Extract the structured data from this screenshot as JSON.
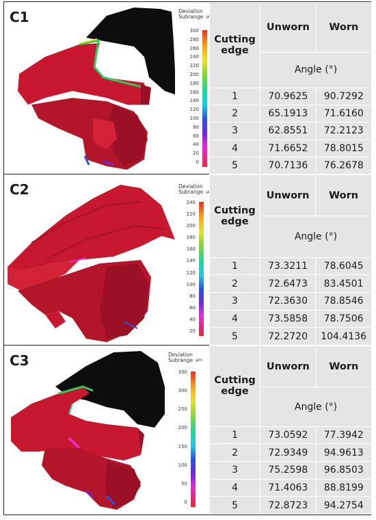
{
  "colorbar_title": "Deviation Subrange",
  "colorbar_unit": "µm",
  "table_headers": {
    "cutting_edge": "Cutting edge",
    "unworn": "Unworn",
    "worn": "Worn",
    "angle": "Angle (°)"
  },
  "panels": [
    {
      "label": "C1",
      "ticks": [
        "300",
        "280",
        "260",
        "240",
        "220",
        "200",
        "180",
        "160",
        "140",
        "120",
        "100",
        "80",
        "60",
        "40",
        "20",
        "0"
      ],
      "rows": [
        {
          "edge": "1",
          "unworn": "70.9625",
          "worn": "90.7292"
        },
        {
          "edge": "2",
          "unworn": "65.1913",
          "worn": "71.6160"
        },
        {
          "edge": "3",
          "unworn": "62.8551",
          "worn": "72.2123"
        },
        {
          "edge": "4",
          "unworn": "71.6652",
          "worn": "78.8015"
        },
        {
          "edge": "5",
          "unworn": "70.7136",
          "worn": "76.2678"
        }
      ]
    },
    {
      "label": "C2",
      "ticks": [
        "240",
        "220",
        "200",
        "180",
        "160",
        "140",
        "120",
        "100",
        "80",
        "60",
        "40",
        "20"
      ],
      "rows": [
        {
          "edge": "1",
          "unworn": "73.3211",
          "worn": "78.6045"
        },
        {
          "edge": "2",
          "unworn": "72.6473",
          "worn": "83.4501"
        },
        {
          "edge": "3",
          "unworn": "72.3630",
          "worn": "78.8546"
        },
        {
          "edge": "4",
          "unworn": "73.5858",
          "worn": "78.7506"
        },
        {
          "edge": "5",
          "unworn": "72.2720",
          "worn": "104.4136"
        }
      ]
    },
    {
      "label": "C3",
      "ticks": [
        "350",
        "300",
        "250",
        "200",
        "150",
        "100",
        "50",
        "0"
      ],
      "rows": [
        {
          "edge": "1",
          "unworn": "73.0592",
          "worn": "77.3942"
        },
        {
          "edge": "2",
          "unworn": "72.9349",
          "worn": "94.9613"
        },
        {
          "edge": "3",
          "unworn": "75.2598",
          "worn": "96.8503"
        },
        {
          "edge": "4",
          "unworn": "71.4063",
          "worn": "88.8199"
        },
        {
          "edge": "5",
          "unworn": "72.8723",
          "worn": "94.2754"
        }
      ]
    }
  ],
  "colors": {
    "tool_red": "#c8182f",
    "tool_dark_red": "#9c1025",
    "chip_black": "#0d0d0d",
    "table_bg": "#e5e5e5"
  }
}
